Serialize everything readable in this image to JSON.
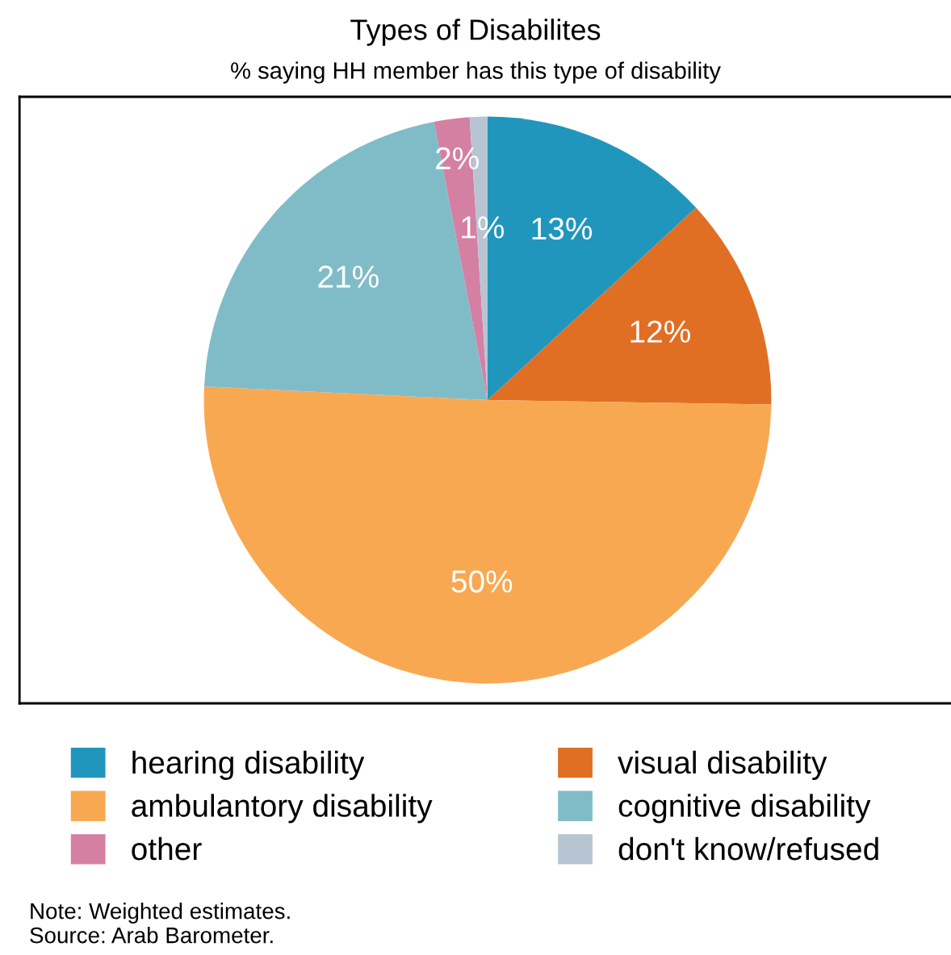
{
  "chart_data": {
    "type": "pie",
    "title": "Types of Disabilites",
    "subtitle": "% saying HH member has this type of disability",
    "categories": [
      "hearing disability",
      "visual disability",
      "ambulantory disability",
      "cognitive disability",
      "other",
      "don't know/refused"
    ],
    "values": [
      13,
      12,
      50,
      21,
      2,
      1
    ],
    "colors": [
      "#2196bd",
      "#e06f24",
      "#f9a852",
      "#80bcc8",
      "#d480a3",
      "#b7c5d2"
    ],
    "value_labels": [
      "13%",
      "12%",
      "50%",
      "21%",
      "2%",
      "1%"
    ],
    "legend": "bottom",
    "annotations": [
      "Note: Weighted estimates.",
      "Source: Arab Barometer."
    ]
  }
}
